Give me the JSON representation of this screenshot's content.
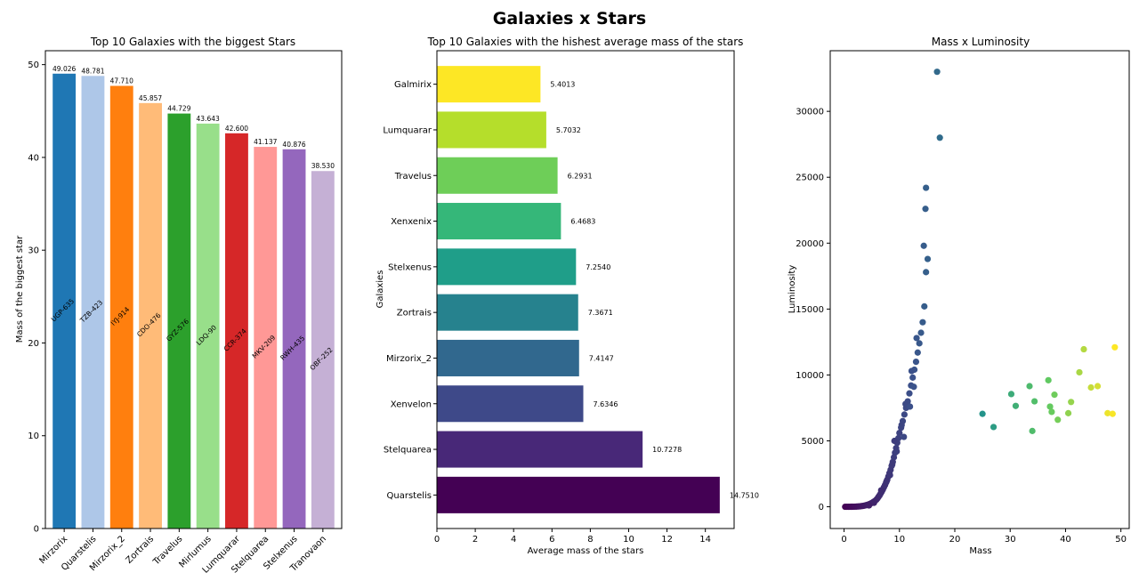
{
  "figure": {
    "title": "Galaxies x Stars"
  },
  "chart_data": [
    {
      "type": "bar",
      "title": "Top 10 Galaxies with the biggest Stars",
      "xlabel": "",
      "ylabel": "Mass of the biggest star",
      "ylim": [
        0,
        51.5
      ],
      "yticks": [
        0,
        10,
        20,
        30,
        40,
        50
      ],
      "grid": false,
      "categories": [
        "Mirzorix",
        "Quarstelis",
        "Mirzorix_2",
        "Zortrais",
        "Travelus",
        "Mirlumus",
        "Lumquarar",
        "Stelquarea",
        "Stelxenus",
        "Tranovaon"
      ],
      "values": [
        49.026,
        48.781,
        47.71,
        45.857,
        44.729,
        43.643,
        42.6,
        41.137,
        40.876,
        38.53
      ],
      "value_labels": [
        "49.026",
        "48.781",
        "47.710",
        "45.857",
        "44.729",
        "43.643",
        "42.600",
        "41.137",
        "40.876",
        "38.530"
      ],
      "star_labels": [
        "UGP-635",
        "TZB-423",
        "IYJ-914",
        "CDO-476",
        "GYZ-576",
        "LDQ-90",
        "CCR-374",
        "MKV-209",
        "RWH-435",
        "OBF-252"
      ],
      "colors": [
        "#1f77b4",
        "#aec7e8",
        "#ff7f0e",
        "#ffbb78",
        "#2ca02c",
        "#98df8a",
        "#d62728",
        "#ff9896",
        "#9467bd",
        "#c5b0d5"
      ]
    },
    {
      "type": "bar",
      "orientation": "horizontal",
      "title": "Top 10 Galaxies with the hishest average mass of the stars",
      "xlabel": "Average mass of the stars",
      "ylabel": "Galaxies",
      "xlim": [
        0,
        15.5
      ],
      "xticks": [
        0,
        2,
        4,
        6,
        8,
        10,
        12,
        14
      ],
      "grid": false,
      "categories": [
        "Quarstelis",
        "Stelquarea",
        "Xenvelon",
        "Mirzorix_2",
        "Zortrais",
        "Stelxenus",
        "Xenxenix",
        "Travelus",
        "Lumquarar",
        "Galmirix"
      ],
      "values": [
        14.751,
        10.7278,
        7.6346,
        7.4147,
        7.3671,
        7.254,
        6.4683,
        6.2931,
        5.7032,
        5.4013
      ],
      "value_labels": [
        "14.7510",
        "10.7278",
        "7.6346",
        "7.4147",
        "7.3671",
        "7.2540",
        "6.4683",
        "6.2931",
        "5.7032",
        "5.4013"
      ],
      "colors": [
        "#440154",
        "#482878",
        "#3e4989",
        "#31688e",
        "#26828e",
        "#1f9e89",
        "#35b779",
        "#6ece58",
        "#b5de2b",
        "#fde725"
      ]
    },
    {
      "type": "scatter",
      "title": "Mass x Luminosity",
      "xlabel": "Mass",
      "ylabel": "Luminosity",
      "xlim": [
        -2.5,
        51.5
      ],
      "ylim": [
        -1650,
        34600
      ],
      "xticks": [
        0,
        10,
        20,
        30,
        40,
        50
      ],
      "yticks": [
        0,
        5000,
        10000,
        15000,
        20000,
        25000,
        30000
      ],
      "grid": false,
      "colormap": "viridis",
      "color_by": "mass",
      "points": [
        [
          0.2,
          0
        ],
        [
          0.5,
          0
        ],
        [
          0.8,
          0
        ],
        [
          1.0,
          1
        ],
        [
          1.3,
          2
        ],
        [
          1.6,
          4
        ],
        [
          1.9,
          7
        ],
        [
          2.2,
          12
        ],
        [
          2.5,
          20
        ],
        [
          2.8,
          30
        ],
        [
          3.1,
          45
        ],
        [
          3.4,
          65
        ],
        [
          3.7,
          90
        ],
        [
          4.0,
          120
        ],
        [
          4.3,
          160
        ],
        [
          4.6,
          210
        ],
        [
          4.9,
          270
        ],
        [
          5.2,
          340
        ],
        [
          5.5,
          420
        ],
        [
          5.8,
          520
        ],
        [
          6.0,
          620
        ],
        [
          6.2,
          740
        ],
        [
          6.4,
          860
        ],
        [
          6.6,
          1000
        ],
        [
          6.8,
          1150
        ],
        [
          7.0,
          1300
        ],
        [
          7.2,
          1480
        ],
        [
          7.4,
          1650
        ],
        [
          7.6,
          1850
        ],
        [
          7.8,
          2050
        ],
        [
          8.0,
          2300
        ],
        [
          8.2,
          2550
        ],
        [
          8.4,
          2800
        ],
        [
          8.6,
          3100
        ],
        [
          8.8,
          3400
        ],
        [
          9.0,
          3750
        ],
        [
          9.2,
          4100
        ],
        [
          9.4,
          4450
        ],
        [
          9.6,
          4850
        ],
        [
          9.8,
          5200
        ],
        [
          10.0,
          5600
        ],
        [
          10.3,
          6000
        ],
        [
          10.6,
          6500
        ],
        [
          10.9,
          7000
        ],
        [
          11.2,
          7500
        ],
        [
          11.5,
          8000
        ],
        [
          11.8,
          8600
        ],
        [
          12.1,
          9200
        ],
        [
          12.4,
          9800
        ],
        [
          12.7,
          10400
        ],
        [
          13.0,
          11000
        ],
        [
          13.3,
          11700
        ],
        [
          13.6,
          12400
        ],
        [
          13.9,
          13200
        ],
        [
          14.2,
          14000
        ],
        [
          14.5,
          15200
        ],
        [
          14.8,
          17800
        ],
        [
          15.1,
          18800
        ],
        [
          14.4,
          19800
        ],
        [
          14.7,
          22600
        ],
        [
          14.8,
          24200
        ],
        [
          16.8,
          33000
        ],
        [
          17.3,
          28000
        ],
        [
          9.5,
          4200
        ],
        [
          8.7,
          3200
        ],
        [
          10.4,
          6200
        ],
        [
          11.1,
          7800
        ],
        [
          12.6,
          9100
        ],
        [
          7.7,
          1950
        ],
        [
          6.7,
          1250
        ],
        [
          11.9,
          7600
        ],
        [
          12.2,
          10300
        ],
        [
          13.1,
          12800
        ],
        [
          9.1,
          5000
        ],
        [
          10.8,
          5300
        ],
        [
          8.3,
          2400
        ],
        [
          5.4,
          300
        ],
        [
          4.5,
          100
        ],
        [
          25.0,
          7050
        ],
        [
          27.0,
          6050
        ],
        [
          30.2,
          8550
        ],
        [
          31.0,
          7650
        ],
        [
          33.5,
          9150
        ],
        [
          34.0,
          5750
        ],
        [
          34.4,
          8000
        ],
        [
          36.9,
          9600
        ],
        [
          37.2,
          7600
        ],
        [
          37.5,
          7200
        ],
        [
          38.0,
          8500
        ],
        [
          38.6,
          6600
        ],
        [
          40.5,
          7100
        ],
        [
          41.0,
          7950
        ],
        [
          42.5,
          10200
        ],
        [
          43.3,
          11950
        ],
        [
          44.6,
          9050
        ],
        [
          45.8,
          9150
        ],
        [
          47.6,
          7100
        ],
        [
          48.5,
          7050
        ],
        [
          48.9,
          12100
        ]
      ]
    }
  ]
}
